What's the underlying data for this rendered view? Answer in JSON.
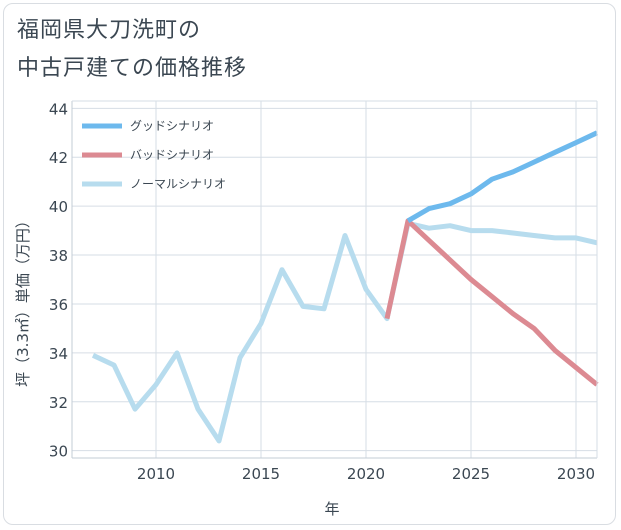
{
  "title_lines": [
    "福岡県大刀洗町の",
    "中古戸建ての価格推移"
  ],
  "chart_data": {
    "type": "line",
    "title": "福岡県大刀洗町の中古戸建ての価格推移",
    "xlabel": "年",
    "ylabel": "坪（3.3㎡）単価（万円）",
    "xlim": [
      2006,
      2031
    ],
    "ylim": [
      29.7,
      44.3
    ],
    "x_ticks": [
      2010,
      2015,
      2020,
      2025,
      2030
    ],
    "y_ticks": [
      30,
      32,
      34,
      36,
      38,
      40,
      42,
      44
    ],
    "grid": true,
    "legend_position": "top-left",
    "series": [
      {
        "name": "ノーマルシナリオ",
        "color": "#b7dcee",
        "x": [
          2007,
          2008,
          2009,
          2010,
          2011,
          2012,
          2013,
          2014,
          2015,
          2016,
          2017,
          2018,
          2019,
          2020,
          2021,
          2022,
          2023,
          2024,
          2025,
          2026,
          2027,
          2028,
          2029,
          2030,
          2031
        ],
        "y": [
          33.9,
          33.5,
          31.7,
          32.7,
          34.0,
          31.7,
          30.4,
          33.8,
          35.2,
          37.4,
          35.9,
          35.8,
          38.8,
          36.6,
          35.4,
          39.3,
          39.1,
          39.2,
          39.0,
          39.0,
          38.9,
          38.8,
          38.7,
          38.7,
          38.5
        ]
      },
      {
        "name": "バッドシナリオ",
        "color": "#dc8a92",
        "x": [
          2021,
          2022,
          2023,
          2024,
          2025,
          2026,
          2027,
          2028,
          2029,
          2030,
          2031
        ],
        "y": [
          35.4,
          39.4,
          38.6,
          37.8,
          37.0,
          36.3,
          35.6,
          35.0,
          34.1,
          33.4,
          32.7
        ]
      },
      {
        "name": "グッドシナリオ",
        "color": "#6db9ed",
        "x": [
          2022,
          2023,
          2024,
          2025,
          2026,
          2027,
          2028,
          2029,
          2030,
          2031
        ],
        "y": [
          39.4,
          39.9,
          40.1,
          40.5,
          41.1,
          41.4,
          41.8,
          42.2,
          42.6,
          43.0
        ]
      }
    ],
    "legend": [
      {
        "name": "グッドシナリオ",
        "color": "#6db9ed"
      },
      {
        "name": "バッドシナリオ",
        "color": "#dc8a92"
      },
      {
        "name": "ノーマルシナリオ",
        "color": "#b7dcee"
      }
    ]
  }
}
